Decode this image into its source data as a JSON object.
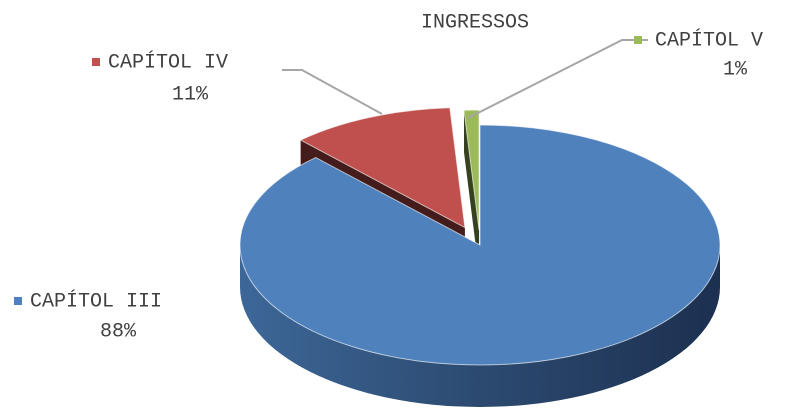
{
  "chart_data": {
    "type": "pie3d",
    "title": "INGRESSOS",
    "categories": [
      "CAPÍTOL III",
      "CAPÍTOL IV",
      "CAPÍTOL V"
    ],
    "values": [
      88,
      11,
      1
    ],
    "value_labels": [
      "88%",
      "11%",
      "1%"
    ],
    "colors": [
      "#4f81bd",
      "#c0504d",
      "#9bbb59"
    ]
  }
}
